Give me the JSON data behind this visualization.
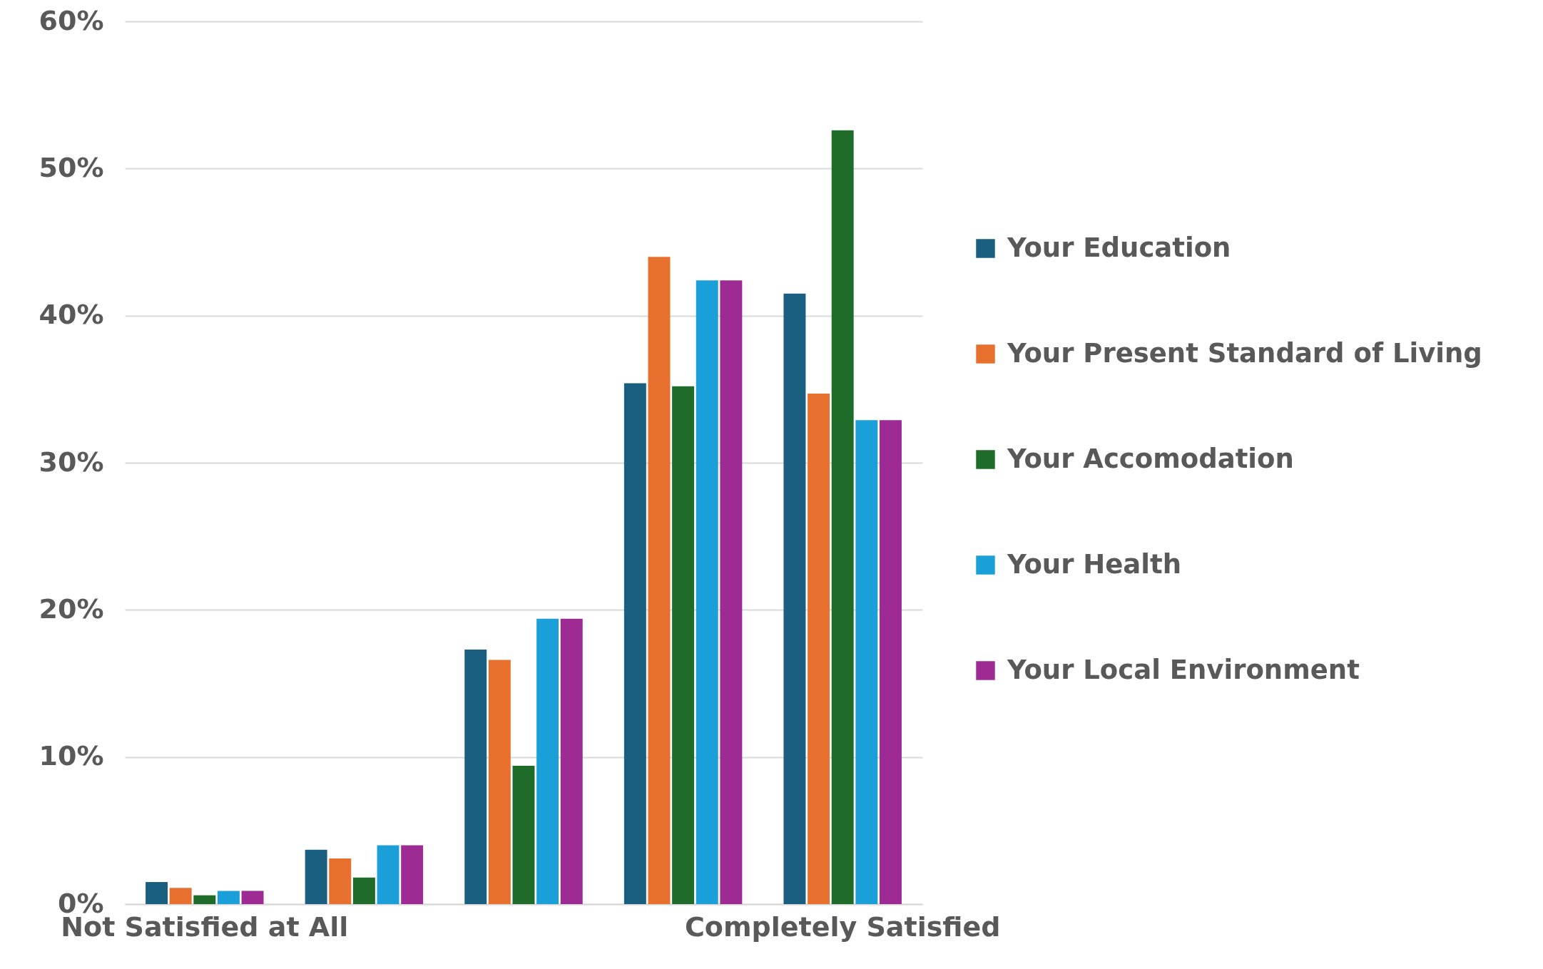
{
  "chart_data": {
    "type": "bar",
    "categories": [
      "Not Satisfied at All",
      null,
      null,
      null,
      "Completely Satisfied"
    ],
    "series": [
      {
        "name": "Your Education",
        "color": "#1a5e80",
        "values": [
          1.5,
          3.7,
          17.3,
          35.4,
          41.5
        ]
      },
      {
        "name": "Your Present Standard of Living",
        "color": "#e8702f",
        "values": [
          1.1,
          3.1,
          16.6,
          44.0,
          34.7
        ]
      },
      {
        "name": "Your Accomodation",
        "color": "#1e6b2a",
        "values": [
          0.6,
          1.8,
          9.4,
          35.2,
          52.6
        ]
      },
      {
        "name": "Your Health",
        "color": "#1a9fd8",
        "values": [
          0.9,
          4.0,
          19.4,
          42.4,
          32.9
        ]
      },
      {
        "name": "Your Local Environment",
        "color": "#9e2a94",
        "values": [
          0.9,
          4.0,
          19.4,
          42.4,
          32.9
        ]
      }
    ],
    "ylim": [
      0,
      60
    ],
    "yticks": [
      {
        "value": 0,
        "label": "0%"
      },
      {
        "value": 10,
        "label": "10%"
      },
      {
        "value": 20,
        "label": "20%"
      },
      {
        "value": 30,
        "label": "30%"
      },
      {
        "value": 40,
        "label": "40%"
      },
      {
        "value": 50,
        "label": "50%"
      },
      {
        "value": 60,
        "label": "60%"
      }
    ],
    "grid": "y",
    "legend": "right"
  }
}
